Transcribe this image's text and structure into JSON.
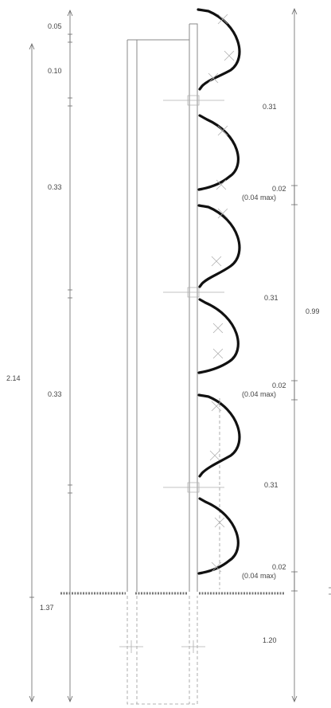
{
  "diagram": {
    "labels": {
      "top_gap": "0.05",
      "top_offset": "0.10",
      "upper_segment": "0.33",
      "lower_segment": "0.33",
      "total_height": "2.14",
      "embed_left": "1.37",
      "panel_1": "0.31",
      "panel_2": "0.31",
      "panel_3": "0.31",
      "gap_1": "0.02",
      "gap_1_max": "(0.04 max)",
      "gap_2": "0.02",
      "gap_2_max": "(0.04 max)",
      "gap_3": "0.02",
      "gap_3_max": "(0.04 max)",
      "panels_total": "0.99",
      "embed_right": "1.20"
    },
    "colors": {
      "panel_stroke": "#111111",
      "dimension_stroke": "#666666",
      "text": "#444444"
    }
  }
}
